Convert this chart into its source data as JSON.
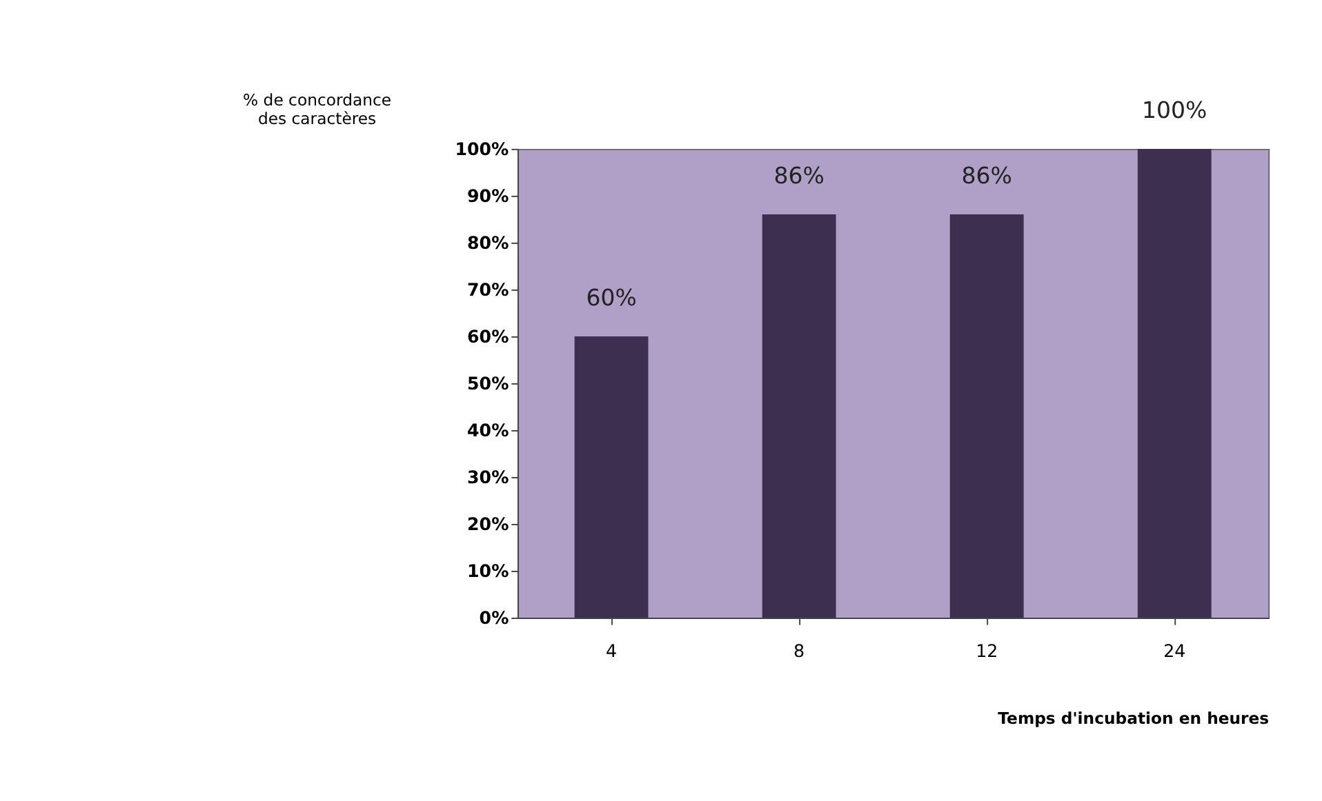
{
  "chart_data": {
    "type": "bar",
    "xlabel": "Temps d'incubation en heures",
    "ylabel": "% de concordance des caractères",
    "categories": [
      "4",
      "8",
      "12",
      "24"
    ],
    "values": [
      60,
      86,
      86,
      100
    ],
    "color": "#3d2f4f",
    "value_labels": [
      "60%",
      "86%",
      "86%",
      "100%"
    ],
    "ylim": [
      0,
      100
    ],
    "yticks": [
      {
        "value": 0,
        "label": "0%"
      },
      {
        "value": 10,
        "label": "10%"
      },
      {
        "value": 20,
        "label": "20%"
      },
      {
        "value": 30,
        "label": "30%"
      },
      {
        "value": 40,
        "label": "40%"
      },
      {
        "value": 50,
        "label": "50%"
      },
      {
        "value": 60,
        "label": "60%"
      },
      {
        "value": 70,
        "label": "70%"
      },
      {
        "value": 80,
        "label": "80%"
      },
      {
        "value": 90,
        "label": "90%"
      },
      {
        "value": 100,
        "label": "100%"
      }
    ],
    "grid": false
  }
}
